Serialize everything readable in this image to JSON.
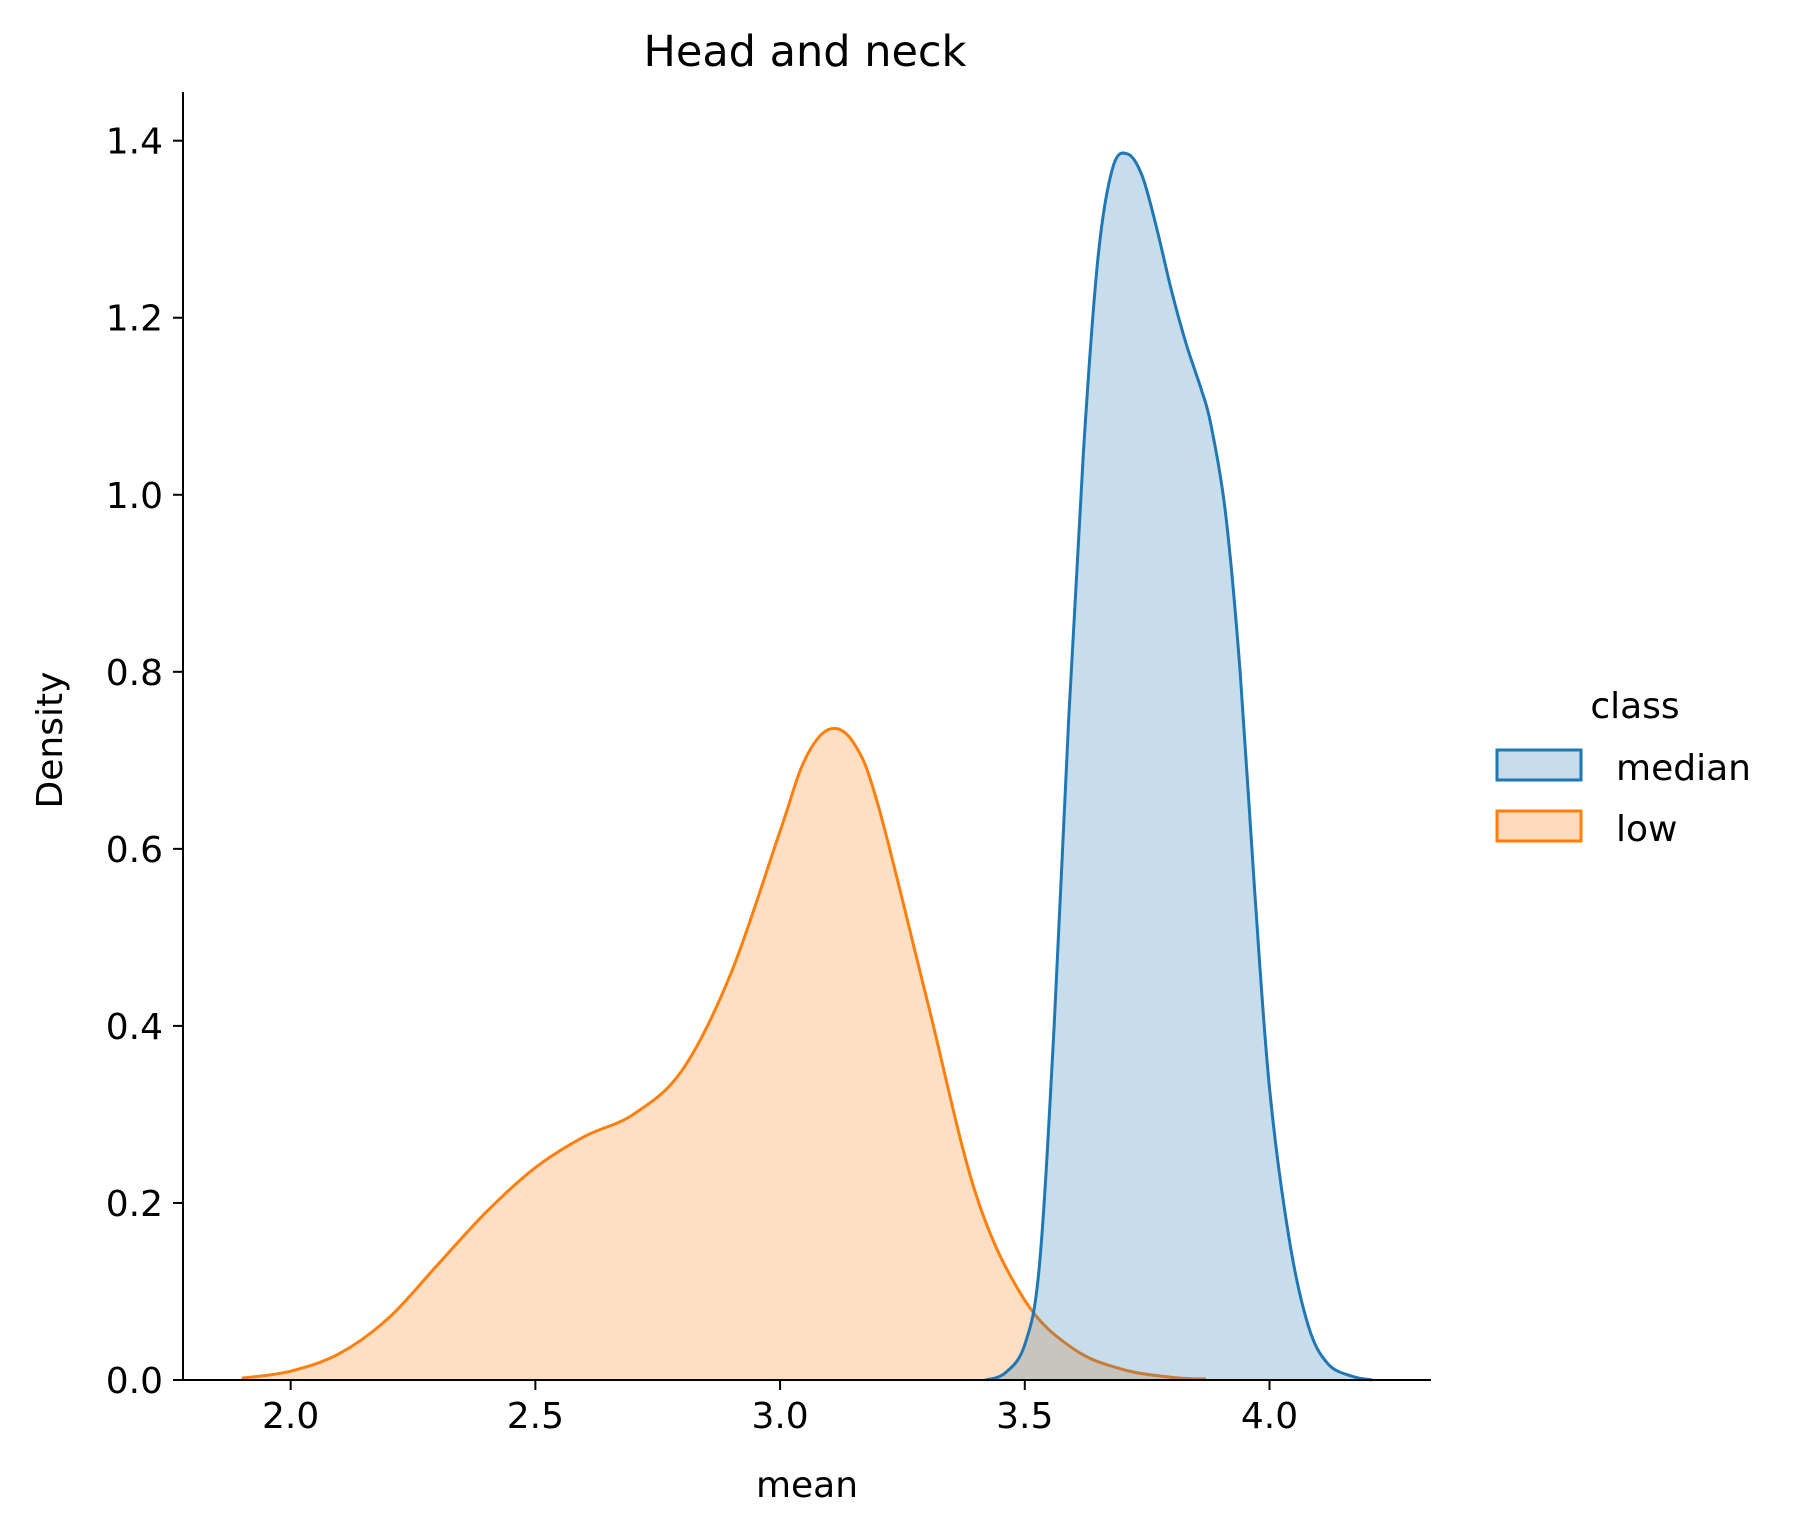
{
  "chart_data": {
    "type": "area",
    "title": "Head and neck",
    "xlabel": "mean",
    "ylabel": "Density",
    "xlim": [
      1.78,
      4.33
    ],
    "ylim": [
      0,
      1.455
    ],
    "xticks": [
      2.0,
      2.5,
      3.0,
      3.5,
      4.0
    ],
    "xtick_labels": [
      "2.0",
      "2.5",
      "3.0",
      "3.5",
      "4.0"
    ],
    "yticks": [
      0.0,
      0.2,
      0.4,
      0.6,
      0.8,
      1.0,
      1.2,
      1.4
    ],
    "ytick_labels": [
      "0.0",
      "0.2",
      "0.4",
      "0.6",
      "0.8",
      "1.0",
      "1.2",
      "1.4"
    ],
    "grid": false,
    "legend": {
      "title": "class",
      "placement": "right, outside plot"
    },
    "series": [
      {
        "name": "median",
        "color": "#1f77b4",
        "fill": "#c6dbec",
        "points": [
          [
            3.42,
            0.0
          ],
          [
            3.46,
            0.008
          ],
          [
            3.5,
            0.04
          ],
          [
            3.53,
            0.13
          ],
          [
            3.56,
            0.4
          ],
          [
            3.59,
            0.75
          ],
          [
            3.62,
            1.05
          ],
          [
            3.65,
            1.27
          ],
          [
            3.68,
            1.37
          ],
          [
            3.71,
            1.385
          ],
          [
            3.74,
            1.36
          ],
          [
            3.77,
            1.3
          ],
          [
            3.8,
            1.23
          ],
          [
            3.83,
            1.17
          ],
          [
            3.86,
            1.12
          ],
          [
            3.88,
            1.08
          ],
          [
            3.91,
            0.98
          ],
          [
            3.94,
            0.8
          ],
          [
            3.97,
            0.55
          ],
          [
            4.0,
            0.33
          ],
          [
            4.04,
            0.16
          ],
          [
            4.08,
            0.06
          ],
          [
            4.12,
            0.018
          ],
          [
            4.17,
            0.004
          ],
          [
            4.21,
            0.0
          ]
        ]
      },
      {
        "name": "low",
        "color": "#ff7f0e",
        "fill": "#fdd9bd",
        "points": [
          [
            1.9,
            0.002
          ],
          [
            2.0,
            0.01
          ],
          [
            2.1,
            0.03
          ],
          [
            2.2,
            0.07
          ],
          [
            2.3,
            0.13
          ],
          [
            2.4,
            0.19
          ],
          [
            2.5,
            0.24
          ],
          [
            2.6,
            0.275
          ],
          [
            2.7,
            0.3
          ],
          [
            2.8,
            0.35
          ],
          [
            2.9,
            0.46
          ],
          [
            3.0,
            0.62
          ],
          [
            3.05,
            0.7
          ],
          [
            3.1,
            0.735
          ],
          [
            3.15,
            0.72
          ],
          [
            3.2,
            0.65
          ],
          [
            3.3,
            0.43
          ],
          [
            3.4,
            0.21
          ],
          [
            3.5,
            0.09
          ],
          [
            3.6,
            0.035
          ],
          [
            3.7,
            0.012
          ],
          [
            3.8,
            0.003
          ],
          [
            3.87,
            0.001
          ]
        ]
      }
    ]
  }
}
